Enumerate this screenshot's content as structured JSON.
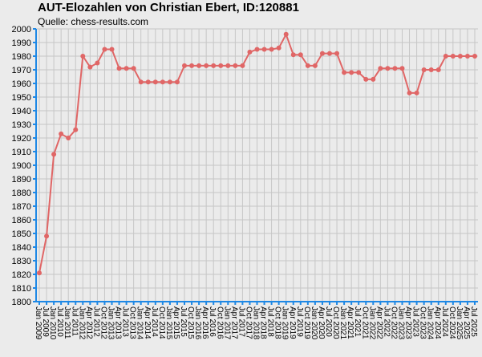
{
  "chart_data": {
    "type": "line",
    "title": "AUT-Elozahlen von Christian Ebert, ID:120881",
    "subtitle": "Quelle: chess-results.com",
    "ylim": [
      1800,
      2000
    ],
    "yticks": [
      1800,
      1810,
      1820,
      1830,
      1840,
      1850,
      1860,
      1870,
      1880,
      1890,
      1900,
      1910,
      1920,
      1930,
      1940,
      1950,
      1960,
      1970,
      1980,
      1990,
      2000
    ],
    "grid": true,
    "colors": {
      "line": "#e06666",
      "grid": "#c6c6c6",
      "axis": "#1e88e5",
      "background": "#ebebeb"
    },
    "categories": [
      "Jan 2009",
      "Jul 2009",
      "Jan 2010",
      "Jul 2010",
      "Jan 2011",
      "Jul 2011",
      "Jan 2012",
      "Apr 2012",
      "Jul 2012",
      "Oct 2012",
      "Jan 2013",
      "Apr 2013",
      "Jul 2013",
      "Oct 2013",
      "Jan 2014",
      "Apr 2014",
      "Jul 2014",
      "Oct 2014",
      "Jan 2015",
      "Apr 2015",
      "Jul 2015",
      "Oct 2015",
      "Jan 2016",
      "Apr 2016",
      "Jul 2016",
      "Oct 2016",
      "Jan 2017",
      "Apr 2017",
      "Jul 2017",
      "Oct 2017",
      "Jan 2018",
      "Apr 2018",
      "Jul 2018",
      "Oct 2018",
      "Jan 2019",
      "Apr 2019",
      "Jul 2019",
      "Oct 2019",
      "Jan 2020",
      "Apr 2020",
      "Jul 2020",
      "Oct 2020",
      "Jan 2021",
      "Apr 2021",
      "Jul 2021",
      "Oct 2021",
      "Jan 2022",
      "Apr 2022",
      "Jul 2022",
      "Oct 2022",
      "Jan 2023",
      "Apr 2023",
      "Jul 2023",
      "Oct 2023",
      "Jan 2024",
      "Apr 2024",
      "Jul 2024",
      "Oct 2024",
      "Jan 2025",
      "Apr 2025",
      "Jul 2025"
    ],
    "series": [
      {
        "values": [
          1821,
          1848,
          1908,
          1923,
          1920,
          1926,
          1980,
          1972,
          1975,
          1985,
          1985,
          1971,
          1971,
          1971,
          1961,
          1961,
          1961,
          1961,
          1961,
          1961,
          1973,
          1973,
          1973,
          1973,
          1973,
          1973,
          1973,
          1973,
          1973,
          1983,
          1985,
          1985,
          1985,
          1986,
          1996,
          1981,
          1981,
          1973,
          1973,
          1982,
          1982,
          1982,
          1968,
          1968,
          1968,
          1963,
          1963,
          1971,
          1971,
          1971,
          1971,
          1953,
          1953,
          1970,
          1970,
          1970,
          1980,
          1980,
          1980,
          1980,
          1980
        ]
      }
    ]
  }
}
